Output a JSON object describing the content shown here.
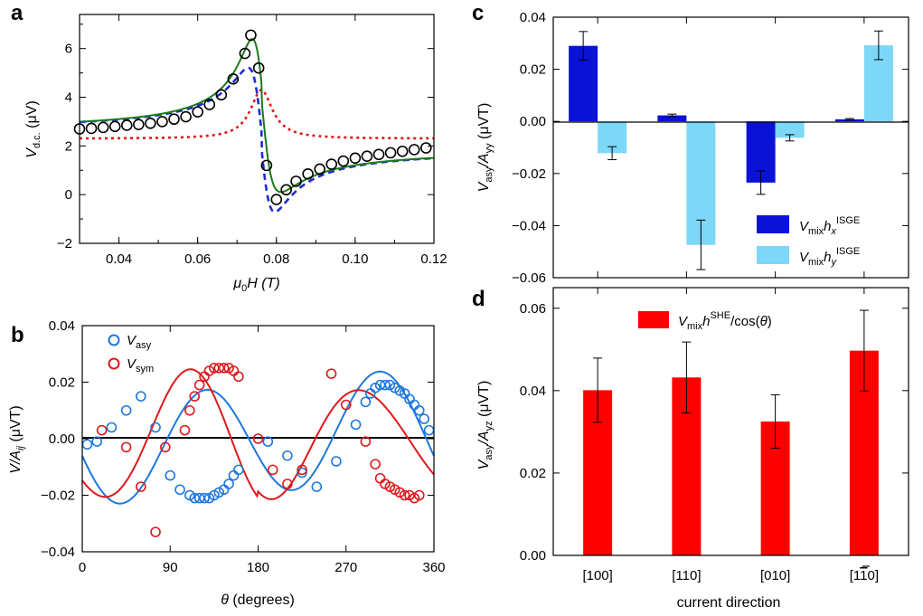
{
  "chart_data": [
    {
      "panel": "a",
      "type": "line",
      "title": "",
      "xlabel_main": "μ",
      "xlabel_sub": "0",
      "xlabel_rest": "H (T)",
      "ylabel_main": "V",
      "ylabel_sub": "d.c.",
      "ylabel_rest": " (μV)",
      "xlim": [
        0.03,
        0.12
      ],
      "ylim": [
        -2,
        7.4
      ],
      "xticks": [
        0.04,
        0.06,
        0.08,
        0.1,
        0.12
      ],
      "xtick_labels": [
        "0.04",
        "0.06",
        "0.08",
        "0.10",
        "0.12"
      ],
      "yticks": [
        -2,
        0,
        2,
        4,
        6
      ],
      "ytick_labels": [
        "−2",
        "0",
        "2",
        "4",
        "6"
      ],
      "model": {
        "H0": 0.0762,
        "dH": 0.0034,
        "V0_left": 2.3,
        "V0_right": 2.3,
        "sym_amp": 2.0,
        "asy_amp": 5.8,
        "sym_offset": 2.3,
        "asy_offset": 2.3
      },
      "series": [
        {
          "name": "fit total",
          "style": "solid",
          "color": "#1a7a1a"
        },
        {
          "name": "antisymmetric",
          "style": "dashed",
          "color": "#1c2bd6"
        },
        {
          "name": "symmetric",
          "style": "dotted",
          "color": "#e0181c"
        }
      ],
      "points": {
        "name": "data",
        "color": "#000000",
        "x": [
          0.03,
          0.033,
          0.036,
          0.039,
          0.042,
          0.045,
          0.048,
          0.051,
          0.054,
          0.057,
          0.06,
          0.063,
          0.066,
          0.069,
          0.072,
          0.0735,
          0.0755,
          0.0775,
          0.08,
          0.0825,
          0.085,
          0.088,
          0.091,
          0.094,
          0.097,
          0.1,
          0.103,
          0.106,
          0.109,
          0.112,
          0.115,
          0.118
        ],
        "y": [
          2.7,
          2.72,
          2.76,
          2.8,
          2.85,
          2.88,
          2.93,
          3.0,
          3.1,
          3.2,
          3.4,
          3.7,
          4.1,
          4.75,
          5.8,
          6.55,
          5.2,
          1.2,
          -0.2,
          0.2,
          0.55,
          0.85,
          1.05,
          1.25,
          1.38,
          1.5,
          1.58,
          1.65,
          1.72,
          1.78,
          1.85,
          1.92
        ]
      }
    },
    {
      "panel": "b",
      "type": "scatter",
      "xlabel_main": "θ",
      "xlabel_rest": " (degrees)",
      "ylabel_main": "V",
      "ylabel_mid": "/A",
      "ylabel_sub": "ij",
      "ylabel_rest": " (μVT)",
      "xlim": [
        0,
        360
      ],
      "ylim": [
        -0.04,
        0.04
      ],
      "xticks": [
        0,
        90,
        180,
        270,
        360
      ],
      "xtick_labels": [
        "0",
        "90",
        "180",
        "270",
        "360"
      ],
      "yticks": [
        -0.04,
        -0.02,
        0.0,
        0.02,
        0.04
      ],
      "ytick_labels": [
        "−0.04",
        "−0.02",
        "0.00",
        "0.02",
        "0.04"
      ],
      "legend": [
        {
          "main": "V",
          "sub": "asy",
          "color": "#1e78dc"
        },
        {
          "main": "V",
          "sub": "sym",
          "color": "#e0181c"
        }
      ],
      "series": [
        {
          "name": "V_asy",
          "color": "#1e78dc",
          "x": [
            5,
            15,
            30,
            45,
            60,
            75,
            90,
            100,
            110,
            115,
            120,
            125,
            130,
            135,
            140,
            145,
            150,
            155,
            160,
            190,
            210,
            225,
            240,
            260,
            280,
            290,
            295,
            300,
            305,
            310,
            315,
            320,
            325,
            330,
            335,
            340,
            345,
            350,
            355
          ],
          "y": [
            -0.002,
            -0.001,
            0.004,
            0.01,
            0.015,
            0.004,
            -0.013,
            -0.018,
            -0.02,
            -0.021,
            -0.021,
            -0.021,
            -0.021,
            -0.02,
            -0.019,
            -0.018,
            -0.016,
            -0.013,
            -0.011,
            -0.001,
            -0.006,
            -0.012,
            -0.017,
            -0.008,
            0.005,
            0.013,
            0.016,
            0.018,
            0.019,
            0.019,
            0.019,
            0.018,
            0.017,
            0.016,
            0.014,
            0.012,
            0.01,
            0.007,
            0.003
          ]
        },
        {
          "name": "V_sym",
          "color": "#e0181c",
          "x": [
            20,
            45,
            60,
            75,
            85,
            105,
            110,
            115,
            120,
            125,
            130,
            135,
            140,
            145,
            150,
            155,
            160,
            180,
            195,
            210,
            225,
            255,
            270,
            290,
            300,
            305,
            310,
            315,
            320,
            325,
            330,
            335,
            340,
            345
          ],
          "y": [
            0.003,
            -0.003,
            -0.017,
            -0.033,
            -0.003,
            0.003,
            0.01,
            0.015,
            0.019,
            0.022,
            0.024,
            0.025,
            0.025,
            0.025,
            0.025,
            0.024,
            0.022,
            0.0,
            -0.011,
            -0.016,
            -0.011,
            0.023,
            0.012,
            -0.001,
            -0.009,
            -0.014,
            -0.016,
            -0.017,
            -0.018,
            -0.019,
            -0.02,
            -0.02,
            -0.021,
            -0.02
          ]
        }
      ],
      "fits": [
        {
          "name": "asy fit",
          "color": "#1e78dc"
        },
        {
          "name": "sym fit",
          "color": "#e0181c"
        }
      ]
    },
    {
      "panel": "c",
      "type": "bar",
      "ylabel_main": "V",
      "ylabel_sub": "asy",
      "ylabel_mid": "/A",
      "ylabel_sub2": "yy",
      "ylabel_rest": " (μVT)",
      "ylim": [
        -0.06,
        0.04
      ],
      "yticks": [
        -0.06,
        -0.04,
        -0.02,
        0.0,
        0.02,
        0.04
      ],
      "ytick_labels": [
        "−0.06",
        "−0.04",
        "−0.02",
        "0.00",
        "0.02",
        "0.04"
      ],
      "categories": [
        "[100]",
        "[110]",
        "[010]",
        "[1-10]"
      ],
      "series": [
        {
          "name": "V_mix h_x^ISGE",
          "color": "#0b12d8",
          "values": [
            0.029,
            0.0023,
            -0.0235,
            0.0008
          ],
          "errors": [
            0.0055,
            0.0005,
            0.0045,
            0.0003
          ]
        },
        {
          "name": "V_mix h_y^ISGE",
          "color": "#7dd7f7",
          "values": [
            -0.0122,
            -0.0474,
            -0.0063,
            0.0292
          ],
          "errors": [
            0.0025,
            0.0095,
            0.0012,
            0.0055
          ]
        }
      ],
      "legend": [
        {
          "main": "V",
          "sub": "mix",
          "mid": "h",
          "italic_sub": "x",
          "sup": "ISGE",
          "color": "#0b12d8"
        },
        {
          "main": "V",
          "sub": "mix",
          "mid": "h",
          "italic_sub": "y",
          "sup": "ISGE",
          "color": "#7dd7f7"
        }
      ]
    },
    {
      "panel": "d",
      "type": "bar",
      "xlabel": "current direction",
      "ylabel_main": "V",
      "ylabel_sub": "asy",
      "ylabel_mid": "/A",
      "ylabel_sub2": "yz",
      "ylabel_rest": " (μVT)",
      "ylim": [
        0.0,
        0.065
      ],
      "yticks": [
        0.0,
        0.02,
        0.04,
        0.06
      ],
      "ytick_labels": [
        "0.00",
        "0.02",
        "0.04",
        "0.06"
      ],
      "categories": [
        "[100]",
        "[110]",
        "[010]",
        "[1-10]"
      ],
      "category_labels": [
        {
          "pre": "[",
          "digits": "100",
          "post": "]",
          "bar_digit": ""
        },
        {
          "pre": "[",
          "digits": "110",
          "post": "]",
          "bar_digit": ""
        },
        {
          "pre": "[",
          "digits": "010",
          "post": "]",
          "bar_digit": ""
        },
        {
          "pre": "[1",
          "digits": "1",
          "post": "0]",
          "bar_digit": "1"
        }
      ],
      "series": [
        {
          "name": "V_mix h^SHE / cos(θ)",
          "color": "#ff0000",
          "values": [
            0.0401,
            0.0432,
            0.0325,
            0.0497
          ],
          "errors": [
            0.0078,
            0.0086,
            0.0065,
            0.0098
          ]
        }
      ],
      "legend": [
        {
          "main": "V",
          "sub": "mix",
          "mid": "h",
          "sup": "SHE",
          "rest": "/cos(",
          "theta": "θ",
          "close": ")",
          "color": "#ff0000"
        }
      ]
    }
  ],
  "panel_labels": [
    "a",
    "b",
    "c",
    "d"
  ]
}
